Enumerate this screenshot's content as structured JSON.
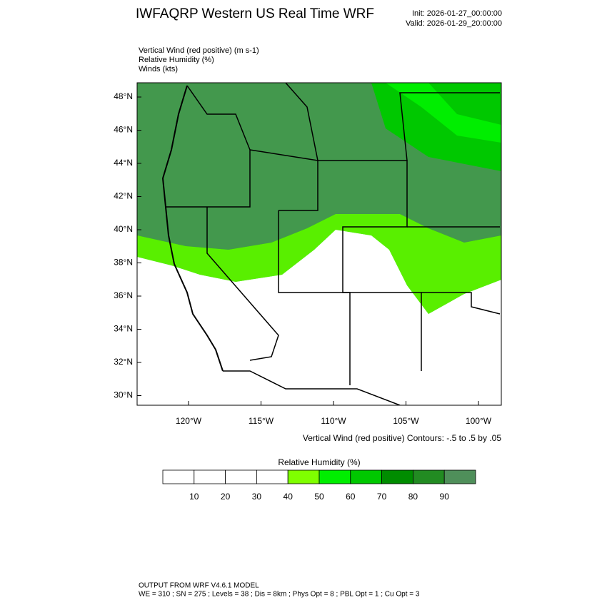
{
  "header": {
    "title": "IWFAQRP Western US Real Time WRF",
    "init": "Init: 2026-01-27_00:00:00",
    "valid": "Valid: 2026-01-29_20:00:00"
  },
  "fields": [
    "Vertical Wind (red positive)   (m s-1)",
    "Relative Humidity   (%)",
    "Winds   (kts)"
  ],
  "map": {
    "lat_labels": [
      "48°N",
      "46°N",
      "44°N",
      "42°N",
      "40°N",
      "38°N",
      "36°N",
      "34°N",
      "32°N",
      "30°N"
    ],
    "lon_labels": [
      "120°W",
      "115°W",
      "110°W",
      "105°W",
      "100°W"
    ],
    "contour_note": "Vertical Wind (red positive) Contours: -.5 to .5 by .05"
  },
  "colorbar": {
    "title": "Relative Humidity  (%)",
    "ticks": [
      10,
      20,
      30,
      40,
      50,
      60,
      70,
      80,
      90
    ],
    "colors": [
      "#ffffff",
      "#ffffff",
      "#ffffff",
      "#ffffff",
      "#7fff00",
      "#00ee00",
      "#00c800",
      "#008c00",
      "#228b22",
      "#4f8f5a"
    ]
  },
  "footer": {
    "line1": "OUTPUT FROM WRF V4.6.1 MODEL",
    "line2": "WE = 310 ; SN = 275 ; Levels = 38 ; Dis = 8km ; Phys Opt = 8 ; PBL Opt = 1 ; Cu Opt = 3"
  }
}
